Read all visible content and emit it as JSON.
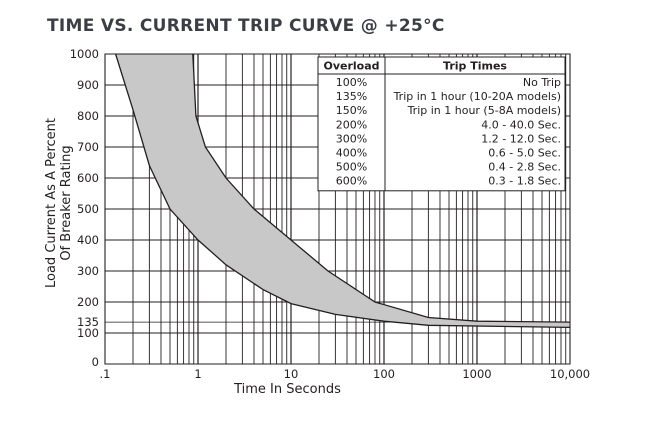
{
  "chart_data": {
    "type": "area",
    "title": "TIME VS. CURRENT TRIP CURVE @ +25°C",
    "xlabel": "Time In Seconds",
    "ylabel": [
      "Load Current As A Percent",
      "Of Breaker Rating"
    ],
    "x_scale": "log",
    "xlim": [
      0.1,
      10000
    ],
    "ylim": [
      0,
      1000
    ],
    "x_ticks": [
      0.1,
      1,
      10,
      100,
      1000,
      10000
    ],
    "x_tick_labels": [
      ".1",
      "1",
      "10",
      "100",
      "1000",
      "10,000"
    ],
    "y_ticks": [
      0,
      100,
      135,
      200,
      300,
      400,
      500,
      600,
      700,
      800,
      900,
      1000
    ],
    "y_tick_labels": [
      "0",
      "100",
      "135",
      "200",
      "300",
      "400",
      "500",
      "600",
      "700",
      "800",
      "900",
      "1000"
    ],
    "grid": true,
    "fill_color": "#c8c8c8",
    "series": [
      {
        "values": [
          {
            "x": 0.13,
            "y": 1000
          },
          {
            "x": 0.2,
            "y": 820
          },
          {
            "x": 0.3,
            "y": 640
          },
          {
            "x": 0.5,
            "y": 500
          },
          {
            "x": 1,
            "y": 400
          },
          {
            "x": 2,
            "y": 320
          },
          {
            "x": 5,
            "y": 240
          },
          {
            "x": 10,
            "y": 195
          },
          {
            "x": 30,
            "y": 160
          },
          {
            "x": 100,
            "y": 138
          },
          {
            "x": 300,
            "y": 125
          },
          {
            "x": 10000,
            "y": 118
          }
        ]
      },
      {
        "values": [
          {
            "x": 0.88,
            "y": 1000
          },
          {
            "x": 0.95,
            "y": 800
          },
          {
            "x": 1.2,
            "y": 700
          },
          {
            "x": 2,
            "y": 600
          },
          {
            "x": 4,
            "y": 500
          },
          {
            "x": 10,
            "y": 400
          },
          {
            "x": 25,
            "y": 300
          },
          {
            "x": 80,
            "y": 200
          },
          {
            "x": 300,
            "y": 150
          },
          {
            "x": 1000,
            "y": 138
          },
          {
            "x": 10000,
            "y": 135
          }
        ]
      }
    ],
    "table": {
      "headers": [
        "Overload",
        "Trip Times"
      ],
      "rows": [
        [
          "100%",
          "No Trip"
        ],
        [
          "135%",
          "Trip in 1 hour (10-20A models)"
        ],
        [
          "150%",
          "Trip in 1 hour (5-8A models)"
        ],
        [
          "200%",
          "4.0 - 40.0 Sec."
        ],
        [
          "300%",
          "1.2 - 12.0 Sec."
        ],
        [
          "400%",
          "0.6 - 5.0 Sec."
        ],
        [
          "500%",
          "0.4 - 2.8 Sec."
        ],
        [
          "600%",
          "0.3 - 1.8 Sec."
        ]
      ]
    }
  }
}
